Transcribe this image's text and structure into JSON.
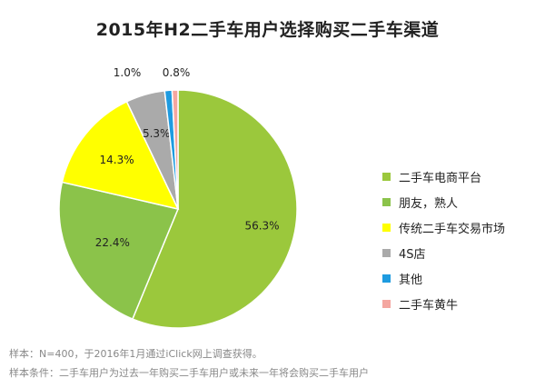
{
  "chart_data": {
    "type": "pie",
    "title": "2015年H2二手车用户选择购买二手车渠道",
    "slices": [
      {
        "label": "二手车电商平台",
        "value": 56.3,
        "display": "56.3%",
        "color": "#9BC83C"
      },
      {
        "label": "朋友，熟人",
        "value": 22.4,
        "display": "22.4%",
        "color": "#8BC34A"
      },
      {
        "label": "传统二手车交易市场",
        "value": 14.3,
        "display": "14.3%",
        "color": "#FFFF00"
      },
      {
        "label": "4S店",
        "value": 5.3,
        "display": "5.3%",
        "color": "#AAAAAA"
      },
      {
        "label": "其他",
        "value": 1.0,
        "display": "1.0%",
        "color": "#1E9BE0"
      },
      {
        "label": "二手车黄牛",
        "value": 0.8,
        "display": "0.8%",
        "color": "#F4A6A0"
      }
    ],
    "legend_position": "right"
  },
  "footnotes": {
    "sample": "样本：N=400，于2016年1月通过iClick网上调查获得。",
    "condition": "样本条件：二手车用户为过去一年购买二手车用户或未来一年将会购买二手车用户"
  }
}
